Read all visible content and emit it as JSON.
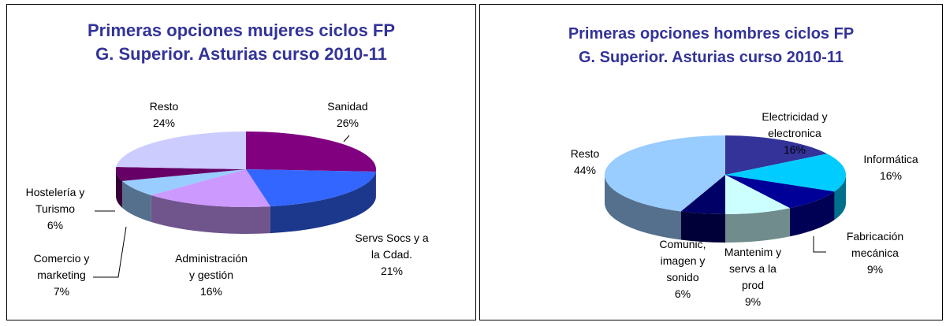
{
  "chart_data": [
    {
      "type": "pie3d",
      "title": [
        "Primeras opciones mujeres ciclos FP",
        "G. Superior. Asturias curso 2010-11"
      ],
      "categories": [
        "Sanidad",
        "Servs Socs y a la Cdad.",
        "Administración y gestión",
        "Comercio y marketing",
        "Hostelería y Turismo",
        "Resto"
      ],
      "values": [
        26,
        21,
        16,
        7,
        6,
        24
      ],
      "value_labels": [
        "26%",
        "21%",
        "16%",
        "7%",
        "6%",
        "24%"
      ],
      "colors": [
        "#800080",
        "#3366ff",
        "#cc99ff",
        "#99ccff",
        "#660066",
        "#ccccff"
      ]
    },
    {
      "type": "pie3d",
      "title": [
        "Primeras opciones hombres ciclos FP",
        "G. Superior. Asturias curso 2010-11"
      ],
      "categories": [
        "Electricidad y electronica",
        "Informática",
        "Fabricación mecánica",
        "Mantenim y servs a la prod",
        "Comunic, imagen y sonido",
        "Resto"
      ],
      "values": [
        16,
        16,
        9,
        9,
        6,
        44
      ],
      "value_labels": [
        "16%",
        "16%",
        "9%",
        "9%",
        "6%",
        "44%"
      ],
      "colors": [
        "#333399",
        "#00ccff",
        "#000099",
        "#ccffff",
        "#000066",
        "#99ccff"
      ]
    }
  ]
}
